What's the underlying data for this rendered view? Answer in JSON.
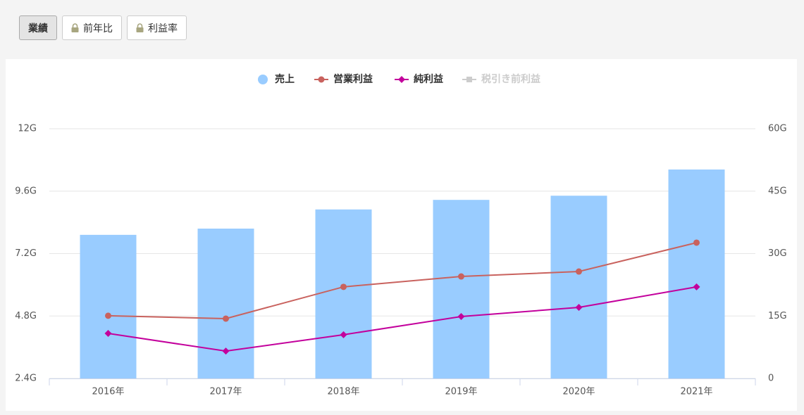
{
  "tabs": [
    "業績",
    "前年比",
    "利益率"
  ],
  "chart_data": {
    "type": "bar-line",
    "categories": [
      "2016年",
      "2017年",
      "2018年",
      "2019年",
      "2020年",
      "2021年"
    ],
    "series": [
      {
        "name": "売上",
        "type": "bar",
        "axis": "y2",
        "color": "#99ccff",
        "values": [
          34.5,
          36.0,
          40.6,
          42.9,
          43.9,
          50.2
        ]
      },
      {
        "name": "営業利益",
        "type": "line",
        "marker": "circle",
        "color": "#c9625e",
        "values": [
          4.81,
          4.7,
          5.92,
          6.32,
          6.51,
          7.62
        ]
      },
      {
        "name": "純利益",
        "type": "line",
        "marker": "diamond",
        "color": "#c3009c",
        "values": [
          4.13,
          3.45,
          4.08,
          4.78,
          5.13,
          5.92
        ]
      },
      {
        "name": "税引き前利益",
        "type": "line",
        "marker": "square",
        "color": "#cccccc",
        "hidden": true,
        "values": [
          null,
          null,
          null,
          null,
          null,
          null
        ]
      }
    ],
    "ylim": [
      2.4,
      12
    ],
    "yticks": [
      {
        "value": 2.4,
        "label": "2.4G"
      },
      {
        "value": 4.8,
        "label": "4.8G"
      },
      {
        "value": 7.2,
        "label": "7.2G"
      },
      {
        "value": 9.6,
        "label": "9.6G"
      },
      {
        "value": 12,
        "label": "12G"
      }
    ],
    "y2lim": [
      0,
      60
    ],
    "y2ticks": [
      0,
      {
        "value": 15,
        "label": "15G"
      },
      {
        "value": 30,
        "label": "30G"
      },
      {
        "value": 45,
        "label": "45G"
      },
      {
        "value": 60,
        "label": "60G"
      }
    ],
    "grid": true,
    "legend": "top"
  }
}
